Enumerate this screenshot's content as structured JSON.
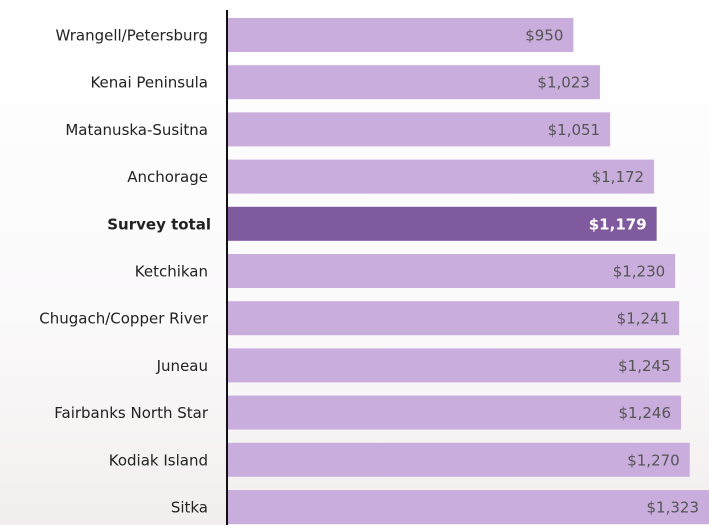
{
  "chart_data": {
    "type": "bar",
    "orientation": "horizontal",
    "categories": [
      "Wrangell/Petersburg",
      "Kenai Peninsula",
      "Matanuska-Susitna",
      "Anchorage",
      "Survey total",
      "Ketchikan",
      "Chugach/Copper River",
      "Juneau",
      "Fairbanks North Star",
      "Kodiak Island",
      "Sitka"
    ],
    "values": [
      950,
      1023,
      1051,
      1172,
      1179,
      1230,
      1241,
      1245,
      1246,
      1270,
      1323
    ],
    "value_labels": [
      "$950",
      "$1,023",
      "$1,051",
      "$1,172",
      "$1,179",
      "$1,230",
      "$1,241",
      "$1,245",
      "$1,246",
      "$1,270",
      "$1,323"
    ],
    "color": "#c9addc",
    "highlight_color": "#7f5a9e",
    "highlight_index": 4
  }
}
